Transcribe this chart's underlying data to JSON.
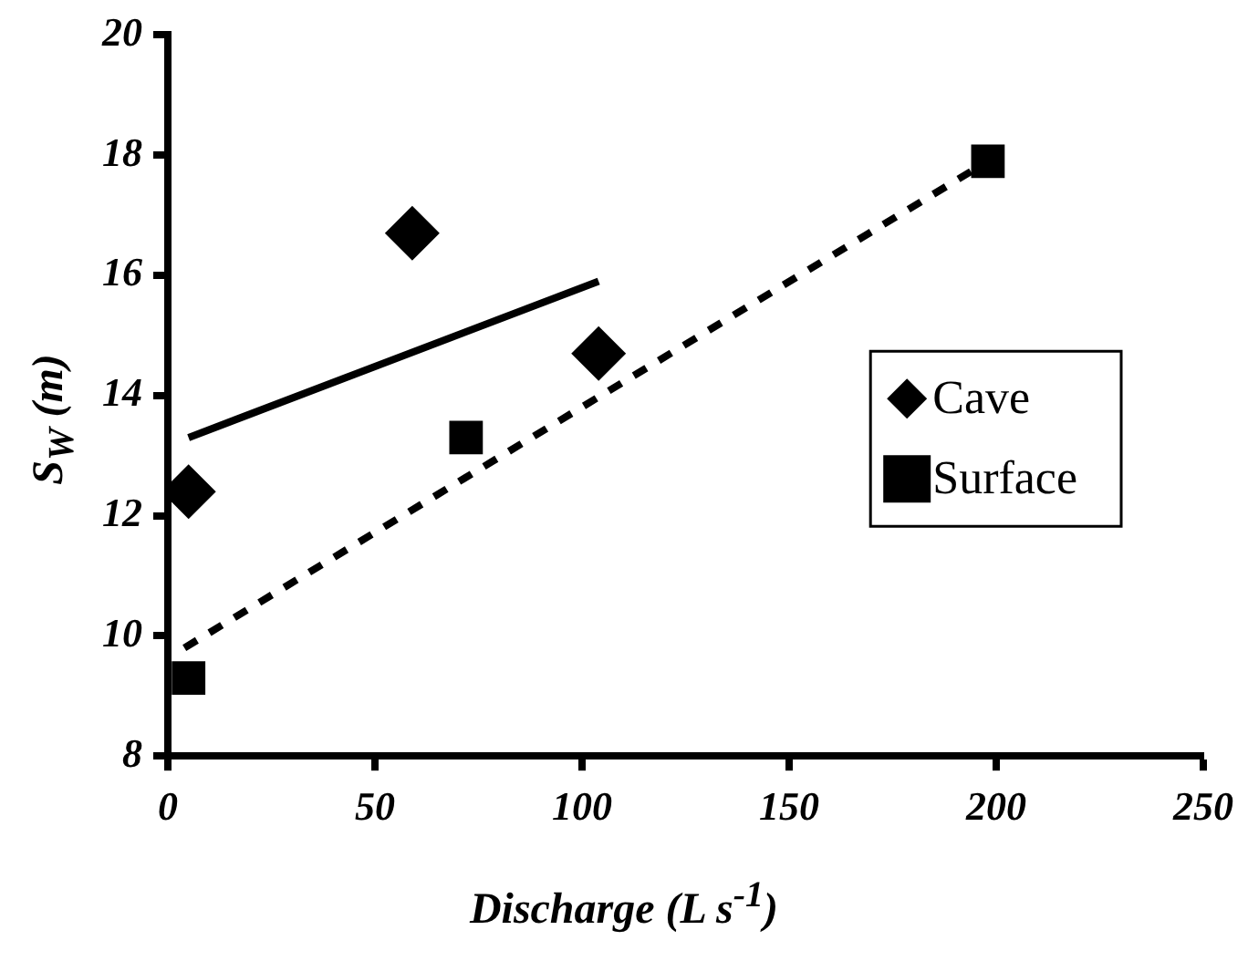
{
  "chart_data": {
    "type": "scatter",
    "xlabel": "Discharge (L s$^{-1}$)",
    "ylabel": "S$_{W}$ (m)",
    "xlim": [
      0,
      250
    ],
    "xticks": [
      0,
      50,
      100,
      150,
      200,
      250
    ],
    "ylim": [
      8,
      20
    ],
    "yticks": [
      8,
      10,
      12,
      14,
      16,
      18,
      20
    ],
    "grid": false,
    "legend": "right",
    "series": [
      {
        "name": "Cave",
        "color": "#000000",
        "marker": "diamond",
        "x": [
          5,
          59,
          104
        ],
        "values": [
          12.4,
          16.7,
          14.7
        ]
      },
      {
        "name": "Surface",
        "color": "#000000",
        "marker": "square",
        "x": [
          5,
          72,
          198
        ],
        "values": [
          9.3,
          13.3,
          17.9
        ]
      },
      {
        "type": "line",
        "color": "#000000",
        "marker": "none",
        "line_style": "solid",
        "x": [
          5,
          104
        ],
        "values": [
          13.3,
          15.9
        ]
      },
      {
        "type": "line",
        "color": "#000000",
        "marker": "none",
        "line_style": "dashed",
        "x": [
          4,
          198
        ],
        "values": [
          9.8,
          17.9
        ]
      }
    ]
  }
}
